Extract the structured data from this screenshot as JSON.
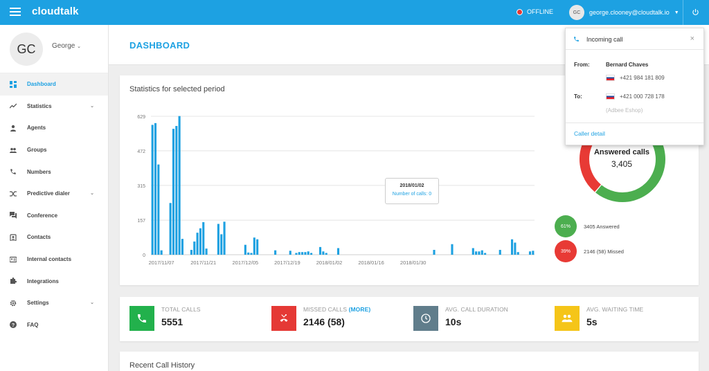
{
  "topbar": {
    "logo": "cloudtalk",
    "status_label": "OFFLINE",
    "avatar_initials": "GC",
    "account_email": "george.clooney@cloudtalk.io",
    "accent": "#1da1e2"
  },
  "sidebar": {
    "avatar_initials": "GC",
    "user_name": "George",
    "items": [
      {
        "label": "Dashboard",
        "icon": "dashboard-icon",
        "active": true
      },
      {
        "label": "Statistics",
        "icon": "trending-icon",
        "has_submenu": true
      },
      {
        "label": "Agents",
        "icon": "person-icon"
      },
      {
        "label": "Groups",
        "icon": "people-icon"
      },
      {
        "label": "Numbers",
        "icon": "phone-icon"
      },
      {
        "label": "Predictive dialer",
        "icon": "shuffle-icon",
        "has_submenu": true
      },
      {
        "label": "Conference",
        "icon": "forum-icon"
      },
      {
        "label": "Contacts",
        "icon": "contacts-icon"
      },
      {
        "label": "Internal contacts",
        "icon": "id-card-icon"
      },
      {
        "label": "Integrations",
        "icon": "puzzle-icon"
      },
      {
        "label": "Settings",
        "icon": "gear-icon",
        "has_submenu": true
      },
      {
        "label": "FAQ",
        "icon": "help-icon"
      }
    ]
  },
  "header": {
    "title": "DASHBOARD"
  },
  "stats": {
    "title": "Statistics for selected period",
    "tooltip": {
      "date": "2018/01/02",
      "text": "Number of calls: 0"
    }
  },
  "chart_data": {
    "type": "bar",
    "title": "Statistics for selected period",
    "ylim": [
      0,
      629
    ],
    "yticks": [
      "0",
      "157",
      "315",
      "472",
      "629"
    ],
    "xticks": [
      "2017/11/07",
      "2017/11/21",
      "2017/12/05",
      "2017/12/19",
      "2018/01/02",
      "2018/01/16",
      "2018/01/30"
    ],
    "grid": true,
    "color": "#1ea1e1",
    "values": [
      590,
      598,
      410,
      20,
      0,
      0,
      235,
      572,
      585,
      630,
      72,
      0,
      0,
      22,
      60,
      100,
      120,
      148,
      28,
      0,
      0,
      0,
      140,
      93,
      150,
      0,
      0,
      0,
      0,
      0,
      0,
      45,
      10,
      8,
      78,
      70,
      0,
      0,
      0,
      0,
      0,
      20,
      0,
      0,
      0,
      0,
      18,
      0,
      8,
      12,
      12,
      12,
      15,
      8,
      0,
      0,
      35,
      15,
      8,
      0,
      0,
      0,
      30,
      0,
      0,
      0,
      0,
      0,
      0,
      0,
      0,
      0,
      0,
      0,
      0,
      0,
      0,
      0,
      0,
      0,
      0,
      0,
      0,
      0,
      0,
      0,
      0,
      0,
      0,
      0,
      0,
      0,
      0,
      0,
      22,
      0,
      0,
      0,
      0,
      0,
      48,
      0,
      0,
      0,
      0,
      0,
      0,
      30,
      15,
      15,
      20,
      8,
      0,
      0,
      0,
      0,
      22,
      0,
      0,
      0,
      70,
      55,
      12,
      0,
      0,
      0,
      15,
      18
    ]
  },
  "pie": {
    "type": "donut",
    "center_title": "Answered calls",
    "center_value": "3,405",
    "slices": [
      {
        "label": "3405 Answered",
        "percent_label": "61%",
        "value": 61,
        "color": "#4cae4f"
      },
      {
        "label": "2146 (58) Missed",
        "percent_label": "39%",
        "value": 39,
        "color": "#e83a35"
      }
    ]
  },
  "kpis": [
    {
      "label": "TOTAL CALLS",
      "more": "",
      "value": "5551",
      "color": "#22b14c",
      "icon": "phone-icon"
    },
    {
      "label": "MISSED CALLS",
      "more": "(MORE)",
      "value": "2146 (58)",
      "color": "#e53935",
      "icon": "missed-call-icon"
    },
    {
      "label": "AVG. CALL DURATION",
      "more": "",
      "value": "10s",
      "color": "#607d8b",
      "icon": "clock-icon"
    },
    {
      "label": "AVG. WAITING TIME",
      "more": "",
      "value": "5s",
      "color": "#f5c518",
      "icon": "group-icon"
    }
  ],
  "recent": {
    "title": "Recent Call History"
  },
  "popup": {
    "title": "Incoming call",
    "close": "×",
    "from_label": "From:",
    "caller_name": "Bernard Chaves",
    "caller_number": "+421 984 181 809",
    "to_label": "To:",
    "to_number": "+421 000 728 178",
    "to_company": "(Adbee Eshop)",
    "detail_link": "Caller detail"
  }
}
